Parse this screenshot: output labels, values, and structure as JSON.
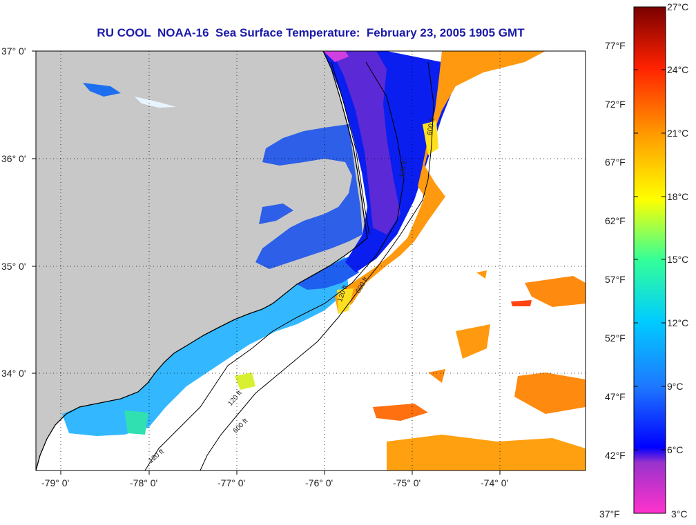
{
  "title": "RU COOL  NOAA-16  Sea Surface Temperature:  February 23, 2005 1905 GMT",
  "map": {
    "lat_labels": [
      "37° 0'",
      "36° 0'",
      "35° 0'",
      "34° 0'"
    ],
    "lon_labels": [
      "-79° 0'",
      "-78° 0'",
      "-77° 0'",
      "-76° 0'",
      "-75° 0'",
      "-74° 0'"
    ],
    "lat_range": [
      33.1,
      37.0
    ],
    "lon_range": [
      -79.3,
      -73.1
    ],
    "contour_labels": [
      "600 ft",
      "120 ft",
      "120 ft",
      "600 ft",
      "120 ft",
      "600 ft",
      "120 ft",
      "600 ft"
    ],
    "land_color": "#c8c8c8",
    "missing_data_color": "#ffffff"
  },
  "colorbar": {
    "celsius_labels": [
      "27°C",
      "24°C",
      "21°C",
      "18°C",
      "15°C",
      "12°C",
      "9°C",
      "6°C",
      "3°C"
    ],
    "fahrenheit_labels": [
      "77°F",
      "72°F",
      "67°F",
      "62°F",
      "57°F",
      "52°F",
      "47°F",
      "42°F",
      "37°F"
    ],
    "celsius_range": [
      3,
      27
    ],
    "colors": [
      "#ff33cc",
      "#9933cc",
      "#0000ff",
      "#1e78ff",
      "#00ccff",
      "#33ff99",
      "#ffff00",
      "#ff9900",
      "#ff2200",
      "#7a0000"
    ]
  }
}
